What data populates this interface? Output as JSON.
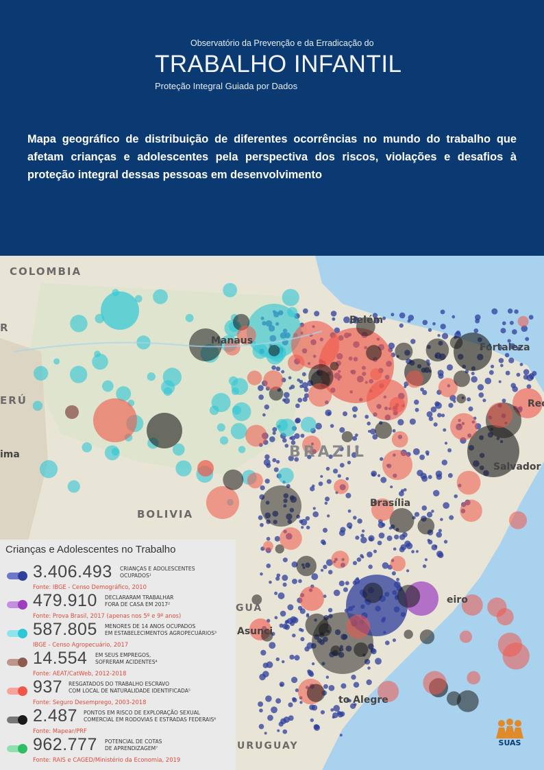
{
  "header": {
    "observatory_line": "Observatório da Prevenção e da Erradicação do",
    "title": "TRABALHO INFANTIL",
    "subtitle": "Proteção Integral Guiada por Dados",
    "intro": "Mapa geográfico de distribuição de diferentes ocorrências no mundo do trabalho que afetam crianças e adolescentes pela  perspectiva dos riscos, violações e desafios à proteção integral dessas pessoas em desenvolvimento",
    "background_color": "#0b3a73"
  },
  "map": {
    "country_labels": [
      "COLOMBIA",
      "BRAZIL",
      "BOLIVIA",
      "ERÚ",
      "R",
      "GUA",
      "URUGUAY"
    ],
    "city_labels": [
      "Fortaleza",
      "Salvador",
      "Brasília",
      "Asunci",
      "to Alegre",
      "Belém",
      "Manaus",
      "ima",
      "Rec",
      "eiro"
    ],
    "colors": {
      "ocean": "#a9d2ee",
      "land": "#e8e4d6",
      "children_occupied": "#2f3f9c",
      "worked_outside_home": "#9b3fc0",
      "agri_under_14": "#2fc7d6",
      "accidents": "#8c5a50",
      "slave_labor": "#f0574a",
      "sexual_exploitation": "#1a1a1a",
      "apprenticeship": "#2dbd63"
    }
  },
  "legend": {
    "title": "Crianças e Adolescentes no Trabalho",
    "items": [
      {
        "number": "3.406.493",
        "desc1": "crianças e adolescentes",
        "desc2": "ocupados¹",
        "source": "Fonte: IBGE - Censo Demográfico, 2010",
        "color": "#2f3f9c",
        "bar": "#6d78c8",
        "icon": "blue-dot-icon"
      },
      {
        "number": "479.910",
        "desc1": "declararam trabalhar",
        "desc2": "fora de casa em 2017²",
        "source": "Fonte: Prova Brasil, 2017 (apenas nos 5º e 9º anos)",
        "color": "#9b3fc0",
        "bar": "#c48fe0",
        "icon": "purple-dot-icon"
      },
      {
        "number": "587.805",
        "desc1": "menores de 14 anos ocupados",
        "desc2": "em estabelecimentos agropecuários³",
        "source": "IBGE - Censo Agropecuário, 2017",
        "color": "#2fc7d6",
        "bar": "#8fe4ec",
        "icon": "cyan-dot-icon"
      },
      {
        "number": "14.554",
        "desc1": "em seus empregos,",
        "desc2": "sofreram acidentes⁴",
        "source": "Fonte: AEAT/CatWeb, 2012-2018",
        "color": "#8c5a50",
        "bar": "#c0968c",
        "icon": "brown-dot-icon"
      },
      {
        "number": "937",
        "desc1": "resgatados do trabalho escravo",
        "desc2": "com local de naturalidade identificada⁵",
        "source": "Fonte: Seguro Desemprego, 2003-2018",
        "color": "#f0574a",
        "bar": "#f7a39b",
        "icon": "red-dot-icon"
      },
      {
        "number": "2.487",
        "desc1": "pontos em risco de exploração sexual",
        "desc2": "comercial em rodovias e estradas federais⁶",
        "source": "Fonte: Mapear/PRF",
        "color": "#1a1a1a",
        "bar": "#777777",
        "icon": "black-dot-icon"
      },
      {
        "number": "962.777",
        "desc1": "potencial de cotas",
        "desc2": "de aprendizagem⁷",
        "source": "Fonte: RAIS e CAGED/Ministério da Economia, 2019",
        "color": "#2dbd63",
        "bar": "#8fe0ad",
        "icon": "green-dot-icon"
      }
    ]
  },
  "logo": {
    "text": "SUAS"
  }
}
